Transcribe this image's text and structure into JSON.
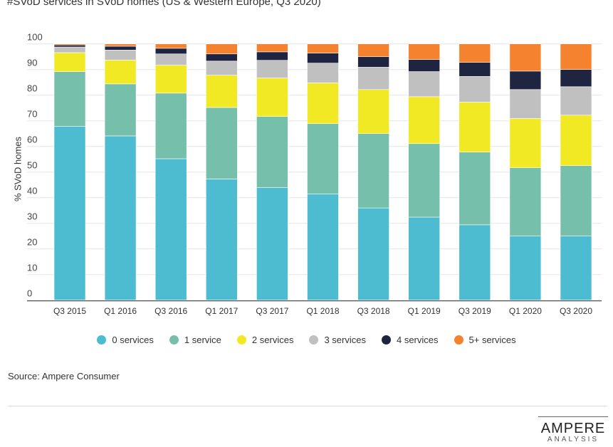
{
  "chart_data": {
    "type": "bar",
    "stacked": true,
    "title": "#SVoD services in SVoD homes (US & Western Europe, Q3 2020)",
    "xlabel": "",
    "ylabel": "% SVoD homes",
    "ylim": [
      0,
      100
    ],
    "yticks": [
      0,
      10,
      20,
      30,
      40,
      50,
      60,
      70,
      80,
      90,
      100
    ],
    "grid": true,
    "legend_position": "bottom",
    "categories": [
      "Q3 2015",
      "Q1 2016",
      "Q3 2016",
      "Q1 2017",
      "Q3 2017",
      "Q1 2018",
      "Q3 2018",
      "Q1 2019",
      "Q3 2019",
      "Q1 2020",
      "Q3 2020"
    ],
    "series": [
      {
        "name": "0 services",
        "color": "#4dbcd1",
        "values": [
          67.8,
          64.1,
          55.2,
          47.3,
          43.9,
          41.5,
          36.0,
          32.4,
          29.4,
          25.0,
          25.0
        ]
      },
      {
        "name": "1 service",
        "color": "#76bfaa",
        "values": [
          21.4,
          20.3,
          25.6,
          27.9,
          27.8,
          27.4,
          29.0,
          28.7,
          28.4,
          26.7,
          27.5
        ]
      },
      {
        "name": "2 services",
        "color": "#f2e925",
        "values": [
          7.4,
          9.3,
          10.9,
          12.6,
          15.0,
          15.9,
          17.2,
          18.3,
          19.5,
          19.2,
          19.7
        ]
      },
      {
        "name": "3 services",
        "color": "#bfc0bf",
        "values": [
          2.2,
          3.9,
          4.4,
          5.5,
          6.9,
          7.7,
          8.7,
          9.8,
          10.0,
          11.3,
          11.1
        ]
      },
      {
        "name": "4 services",
        "color": "#1f2440",
        "values": [
          0.8,
          1.5,
          2.2,
          2.8,
          3.3,
          3.9,
          4.1,
          4.7,
          5.5,
          7.2,
          6.7
        ]
      },
      {
        "name": "5+ services",
        "color": "#f5822f",
        "values": [
          0.4,
          0.9,
          1.7,
          3.9,
          3.1,
          3.6,
          5.0,
          6.1,
          7.2,
          10.6,
          10.0
        ]
      }
    ]
  },
  "source": "Source: Ampere Consumer",
  "logo": {
    "main": "AMPERE",
    "sub": "ANALYSIS"
  }
}
